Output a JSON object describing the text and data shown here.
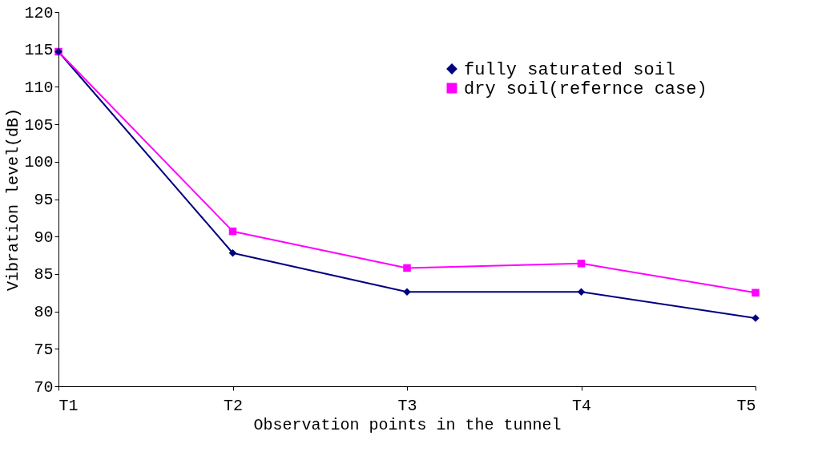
{
  "chart_data": {
    "type": "line",
    "xlabel": "Observation points in the tunnel",
    "ylabel": "Vibration level(dB)",
    "categories": [
      "T1",
      "T2",
      "T3",
      "T4",
      "T5"
    ],
    "series": [
      {
        "name": "fully saturated soil",
        "color": "#000080",
        "marker": "diamond",
        "values": [
          114.7,
          87.8,
          82.6,
          82.6,
          79.1
        ]
      },
      {
        "name": "dry soil(refernce case)",
        "color": "#ff00ff",
        "marker": "square",
        "values": [
          114.7,
          90.7,
          85.8,
          86.4,
          82.5
        ]
      }
    ],
    "ylim": [
      70,
      120
    ],
    "yticks": [
      70,
      75,
      80,
      85,
      90,
      95,
      100,
      105,
      110,
      115,
      120
    ],
    "grid": false,
    "legend": "top right"
  }
}
